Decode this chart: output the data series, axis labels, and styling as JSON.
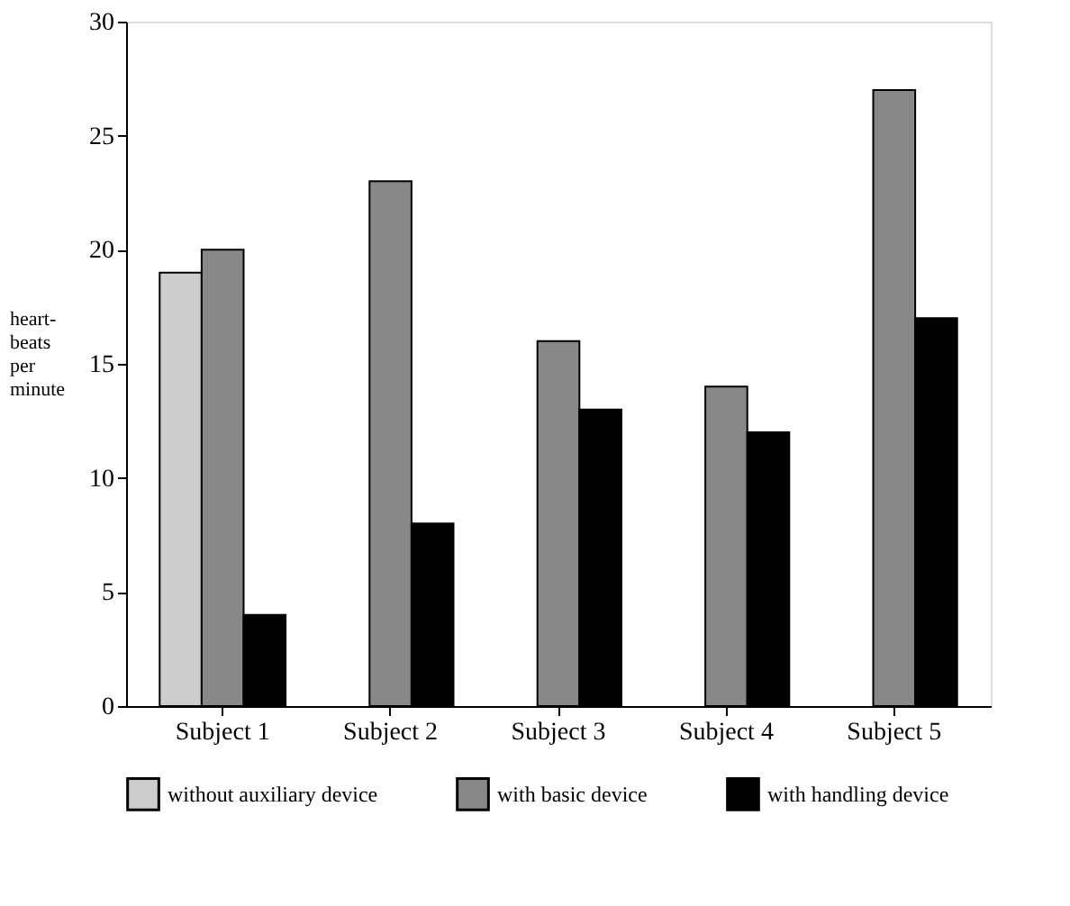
{
  "chart_data": {
    "type": "bar",
    "ylabel": "heart-beats per minute",
    "categories": [
      "Subject 1",
      "Subject 2",
      "Subject 3",
      "Subject 4",
      "Subject 5"
    ],
    "series": [
      {
        "name": "without auxiliary device",
        "color": "#cccccc",
        "values": [
          19,
          null,
          null,
          null,
          null
        ]
      },
      {
        "name": "with basic device",
        "color": "#888888",
        "values": [
          20,
          23,
          16,
          14,
          27
        ]
      },
      {
        "name": "with handling device",
        "color": "#000000",
        "values": [
          4,
          8,
          13,
          12,
          17
        ]
      }
    ],
    "ylim": [
      0,
      30
    ],
    "yticks": [
      0,
      5,
      10,
      15,
      20,
      25,
      30
    ],
    "grid": false,
    "legend": "bottom"
  }
}
